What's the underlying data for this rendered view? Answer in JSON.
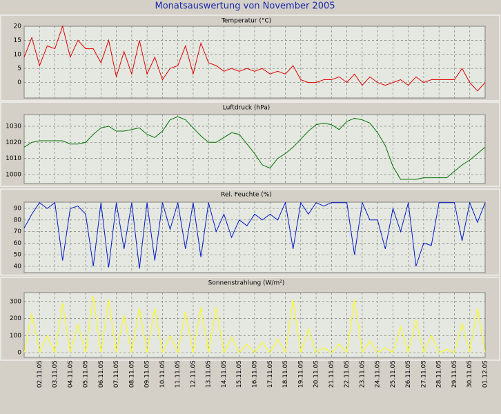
{
  "title": "Monatsauswertung von November 2005",
  "chart_data": [
    {
      "type": "line",
      "title": "Temperatur (°C)",
      "color": "#e00000",
      "grid": true,
      "ylim": [
        -5.5,
        20
      ],
      "yticks": [
        0,
        5,
        10,
        15,
        20
      ],
      "values": [
        9,
        16,
        6,
        13,
        12,
        20,
        9,
        15,
        12,
        12,
        7,
        15,
        2,
        11,
        3,
        15,
        3,
        9,
        1,
        5,
        6,
        13,
        3,
        14,
        7,
        6,
        4,
        5,
        4,
        5,
        4,
        5,
        3,
        4,
        3,
        6,
        1,
        0,
        0,
        1,
        1,
        2,
        0,
        3,
        -1,
        2,
        0,
        -1,
        0,
        1,
        -1,
        2,
        0,
        1,
        1,
        1,
        1,
        5,
        0,
        -3,
        0
      ]
    },
    {
      "type": "line",
      "title": "Luftdruck (hPa)",
      "color": "#007000",
      "grid": true,
      "ylim": [
        994.4,
        1037.3
      ],
      "yticks": [
        1000,
        1010,
        1020,
        1030
      ],
      "values": [
        1017,
        1020,
        1021,
        1021,
        1021,
        1021,
        1019,
        1019,
        1020,
        1025,
        1029,
        1030,
        1027,
        1027,
        1028,
        1029,
        1025,
        1023,
        1027,
        1034,
        1036,
        1034,
        1029,
        1024,
        1020,
        1020,
        1023,
        1026,
        1025,
        1019,
        1013,
        1006,
        1004,
        1010,
        1013,
        1017,
        1022,
        1027,
        1031,
        1032,
        1031,
        1028,
        1033,
        1035,
        1034,
        1032,
        1026,
        1018,
        1005,
        997,
        997,
        997,
        998,
        998,
        998,
        998,
        1002,
        1006,
        1009,
        1013,
        1017
      ]
    },
    {
      "type": "line",
      "title": "Rel. Feuchte (%)",
      "color": "#0018c8",
      "grid": true,
      "ylim": [
        34.6,
        95.4
      ],
      "yticks": [
        40,
        50,
        60,
        70,
        80,
        90
      ],
      "values": [
        73,
        85,
        95,
        90,
        95,
        45,
        90,
        92,
        85,
        40,
        95,
        39,
        95,
        55,
        95,
        38,
        95,
        45,
        95,
        72,
        95,
        55,
        95,
        48,
        95,
        70,
        85,
        65,
        80,
        75,
        85,
        80,
        85,
        80,
        95,
        55,
        95,
        85,
        95,
        92,
        95,
        95,
        95,
        50,
        95,
        80,
        80,
        55,
        90,
        70,
        95,
        40,
        60,
        58,
        95,
        95,
        95,
        62,
        95,
        78,
        95
      ]
    },
    {
      "type": "line",
      "title": "Sonnenstrahlung (W/m²)",
      "color": "#ffff00",
      "grid": true,
      "ylim": [
        -28,
        352
      ],
      "yticks": [
        0,
        100,
        200,
        300
      ],
      "values": [
        0,
        230,
        0,
        100,
        0,
        290,
        0,
        165,
        0,
        330,
        0,
        310,
        0,
        220,
        0,
        260,
        0,
        260,
        0,
        100,
        0,
        240,
        0,
        265,
        0,
        265,
        0,
        90,
        0,
        50,
        0,
        60,
        0,
        80,
        0,
        310,
        0,
        140,
        0,
        30,
        0,
        50,
        0,
        310,
        0,
        70,
        0,
        30,
        0,
        150,
        0,
        190,
        0,
        100,
        0,
        20,
        0,
        170,
        0,
        260,
        0
      ],
      "categories": [
        null,
        null,
        "02.11.05",
        null,
        "03.11.05",
        null,
        "04.11.05",
        null,
        "05.11.05",
        null,
        "06.11.05",
        null,
        "07.11.05",
        null,
        "08.11.05",
        null,
        "09.11.05",
        null,
        "10.11.05",
        null,
        "11.11.05",
        null,
        "12.11.05",
        null,
        "13.11.05",
        null,
        "14.11.05",
        null,
        "15.11.05",
        null,
        "16.11.05",
        null,
        "17.11.05",
        null,
        "18.11.05",
        null,
        "19.11.05",
        null,
        "20.11.05",
        null,
        "21.11.05",
        null,
        "22.11.05",
        null,
        "23.11.05",
        null,
        "24.11.05",
        null,
        "25.11.05",
        null,
        "26.11.05",
        null,
        "27.11.05",
        null,
        "28.11.05",
        null,
        "29.11.05",
        null,
        "30.11.05",
        null,
        "01.12.05"
      ]
    }
  ]
}
